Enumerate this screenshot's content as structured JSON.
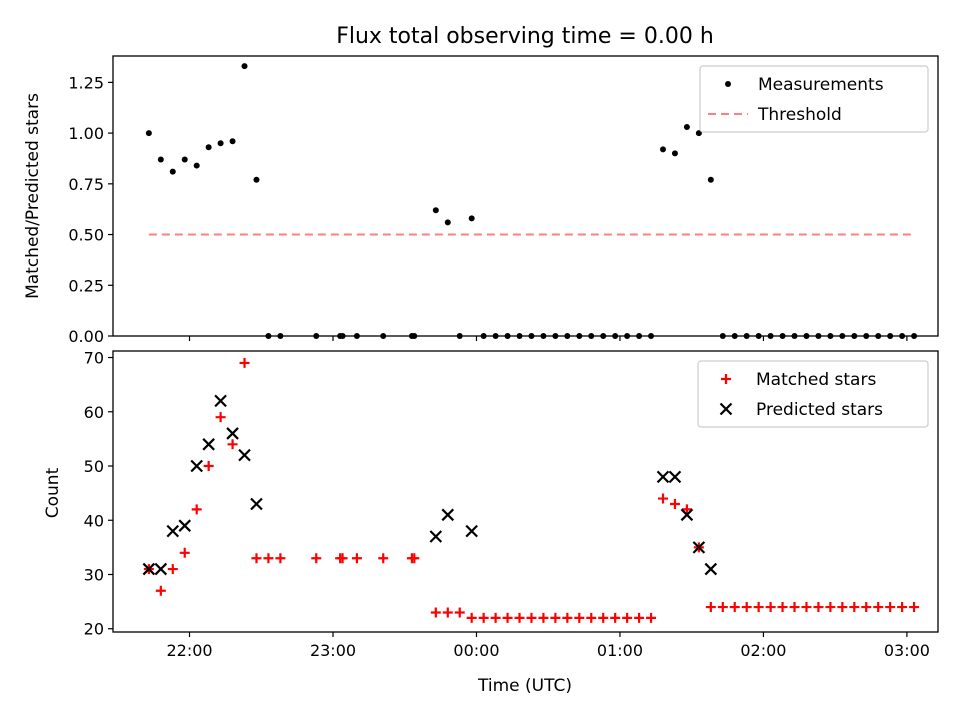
{
  "chart_data": [
    {
      "type": "scatter",
      "title": "Flux total observing time = 0.00 h",
      "xlabel": "",
      "ylabel": "Matched/Predicted stars",
      "xlim": [
        "21:28",
        "03:13"
      ],
      "ylim": [
        0,
        1.38
      ],
      "yticks": [
        "0.00",
        "0.25",
        "0.50",
        "0.75",
        "1.00",
        "1.25"
      ],
      "xticks": [
        "22:00",
        "23:00",
        "00:00",
        "01:00",
        "02:00",
        "03:00"
      ],
      "legend": {
        "position": "top-right",
        "entries": [
          "Measurements",
          "Threshold"
        ]
      },
      "series": [
        {
          "name": "Measurements",
          "marker": "dot",
          "color": "#000000",
          "points": [
            [
              "21:43",
              1.0
            ],
            [
              "21:48",
              0.87
            ],
            [
              "21:53",
              0.81
            ],
            [
              "21:58",
              0.87
            ],
            [
              "22:03",
              0.84
            ],
            [
              "22:08",
              0.93
            ],
            [
              "22:13",
              0.95
            ],
            [
              "22:18",
              0.96
            ],
            [
              "22:23",
              1.33
            ],
            [
              "22:28",
              0.77
            ],
            [
              "22:33",
              0.0
            ],
            [
              "22:38",
              0.0
            ],
            [
              "22:53",
              0.0
            ],
            [
              "23:03",
              0.0
            ],
            [
              "23:04",
              0.0
            ],
            [
              "23:10",
              0.0
            ],
            [
              "23:21",
              0.0
            ],
            [
              "23:33",
              0.0
            ],
            [
              "23:34",
              0.0
            ],
            [
              "23:43",
              0.62
            ],
            [
              "23:48",
              0.56
            ],
            [
              "23:53",
              0.0
            ],
            [
              "23:58",
              0.58
            ],
            [
              "00:03",
              0.0
            ],
            [
              "00:08",
              0.0
            ],
            [
              "00:13",
              0.0
            ],
            [
              "00:18",
              0.0
            ],
            [
              "00:23",
              0.0
            ],
            [
              "00:28",
              0.0
            ],
            [
              "00:33",
              0.0
            ],
            [
              "00:38",
              0.0
            ],
            [
              "00:43",
              0.0
            ],
            [
              "00:48",
              0.0
            ],
            [
              "00:53",
              0.0
            ],
            [
              "00:58",
              0.0
            ],
            [
              "01:03",
              0.0
            ],
            [
              "01:08",
              0.0
            ],
            [
              "01:13",
              0.0
            ],
            [
              "01:18",
              0.92
            ],
            [
              "01:23",
              0.9
            ],
            [
              "01:28",
              1.03
            ],
            [
              "01:33",
              1.0
            ],
            [
              "01:38",
              0.77
            ],
            [
              "01:43",
              0.0
            ],
            [
              "01:48",
              0.0
            ],
            [
              "01:53",
              0.0
            ],
            [
              "01:58",
              0.0
            ],
            [
              "02:03",
              0.0
            ],
            [
              "02:08",
              0.0
            ],
            [
              "02:13",
              0.0
            ],
            [
              "02:18",
              0.0
            ],
            [
              "02:23",
              0.0
            ],
            [
              "02:28",
              0.0
            ],
            [
              "02:33",
              0.0
            ],
            [
              "02:38",
              0.0
            ],
            [
              "02:43",
              0.0
            ],
            [
              "02:48",
              0.0
            ],
            [
              "02:53",
              0.0
            ],
            [
              "02:58",
              0.0
            ],
            [
              "03:03",
              0.0
            ]
          ]
        },
        {
          "name": "Threshold",
          "marker": "dashed-line",
          "color": "#ff7f7f",
          "points": [
            [
              "21:43",
              0.5
            ],
            [
              "03:03",
              0.5
            ]
          ]
        }
      ]
    },
    {
      "type": "scatter",
      "title": "",
      "xlabel": "Time (UTC)",
      "ylabel": "Count",
      "xlim": [
        "21:28",
        "03:13"
      ],
      "ylim": [
        19.4,
        71.2
      ],
      "yticks": [
        "20",
        "30",
        "40",
        "50",
        "60",
        "70"
      ],
      "xticks": [
        "22:00",
        "23:00",
        "00:00",
        "01:00",
        "02:00",
        "03:00"
      ],
      "legend": {
        "position": "top-right",
        "entries": [
          "Matched stars",
          "Predicted stars"
        ]
      },
      "series": [
        {
          "name": "Matched stars",
          "marker": "plus",
          "color": "#ff0000",
          "points": [
            [
              "21:43",
              31
            ],
            [
              "21:48",
              27
            ],
            [
              "21:53",
              31
            ],
            [
              "21:58",
              34
            ],
            [
              "22:03",
              42
            ],
            [
              "22:08",
              50
            ],
            [
              "22:13",
              59
            ],
            [
              "22:18",
              54
            ],
            [
              "22:23",
              69
            ],
            [
              "22:28",
              33
            ],
            [
              "22:33",
              33
            ],
            [
              "22:38",
              33
            ],
            [
              "22:53",
              33
            ],
            [
              "23:03",
              33
            ],
            [
              "23:04",
              33
            ],
            [
              "23:10",
              33
            ],
            [
              "23:21",
              33
            ],
            [
              "23:33",
              33
            ],
            [
              "23:34",
              33
            ],
            [
              "23:43",
              23
            ],
            [
              "23:48",
              23
            ],
            [
              "23:53",
              23
            ],
            [
              "23:58",
              22
            ],
            [
              "00:03",
              22
            ],
            [
              "00:08",
              22
            ],
            [
              "00:13",
              22
            ],
            [
              "00:18",
              22
            ],
            [
              "00:23",
              22
            ],
            [
              "00:28",
              22
            ],
            [
              "00:33",
              22
            ],
            [
              "00:38",
              22
            ],
            [
              "00:43",
              22
            ],
            [
              "00:48",
              22
            ],
            [
              "00:53",
              22
            ],
            [
              "00:58",
              22
            ],
            [
              "01:03",
              22
            ],
            [
              "01:08",
              22
            ],
            [
              "01:13",
              22
            ],
            [
              "01:18",
              44
            ],
            [
              "01:23",
              43
            ],
            [
              "01:28",
              42
            ],
            [
              "01:33",
              35
            ],
            [
              "01:38",
              24
            ],
            [
              "01:43",
              24
            ],
            [
              "01:48",
              24
            ],
            [
              "01:53",
              24
            ],
            [
              "01:58",
              24
            ],
            [
              "02:03",
              24
            ],
            [
              "02:08",
              24
            ],
            [
              "02:13",
              24
            ],
            [
              "02:18",
              24
            ],
            [
              "02:23",
              24
            ],
            [
              "02:28",
              24
            ],
            [
              "02:33",
              24
            ],
            [
              "02:38",
              24
            ],
            [
              "02:43",
              24
            ],
            [
              "02:48",
              24
            ],
            [
              "02:53",
              24
            ],
            [
              "02:58",
              24
            ],
            [
              "03:03",
              24
            ]
          ]
        },
        {
          "name": "Predicted stars",
          "marker": "x",
          "color": "#000000",
          "points": [
            [
              "21:43",
              31
            ],
            [
              "21:48",
              31
            ],
            [
              "21:53",
              38
            ],
            [
              "21:58",
              39
            ],
            [
              "22:03",
              50
            ],
            [
              "22:08",
              54
            ],
            [
              "22:13",
              62
            ],
            [
              "22:18",
              56
            ],
            [
              "22:23",
              52
            ],
            [
              "22:28",
              43
            ],
            [
              "23:43",
              37
            ],
            [
              "23:48",
              41
            ],
            [
              "23:58",
              38
            ],
            [
              "01:18",
              48
            ],
            [
              "01:23",
              48
            ],
            [
              "01:28",
              41
            ],
            [
              "01:33",
              35
            ],
            [
              "01:38",
              31
            ]
          ]
        }
      ]
    }
  ]
}
